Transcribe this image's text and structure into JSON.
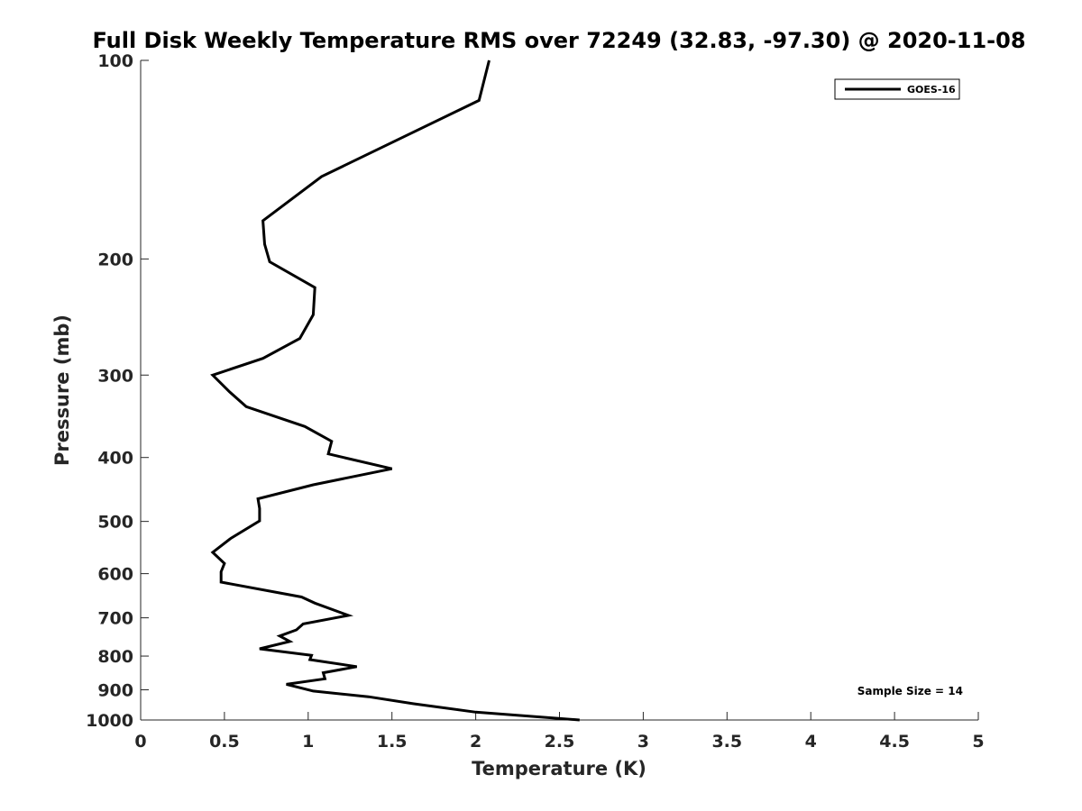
{
  "chart_data": {
    "type": "line",
    "title": "Full Disk Weekly Temperature RMS over 72249 (32.83, -97.30) @ 2020-11-08",
    "xlabel": "Temperature (K)",
    "ylabel": "Pressure (mb)",
    "xlim": [
      0,
      5
    ],
    "ylim": [
      100,
      1000
    ],
    "y_scale": "log",
    "y_reversed": true,
    "x_ticks": [
      0,
      0.5,
      1,
      1.5,
      2,
      2.5,
      3,
      3.5,
      4,
      4.5,
      5
    ],
    "x_tick_labels": [
      "0",
      "0.5",
      "1",
      "1.5",
      "2",
      "2.5",
      "3",
      "3.5",
      "4",
      "4.5",
      "5"
    ],
    "y_ticks": [
      100,
      200,
      300,
      400,
      500,
      600,
      700,
      800,
      900,
      1000
    ],
    "y_tick_labels": [
      "100",
      "200",
      "300",
      "400",
      "500",
      "600",
      "700",
      "800",
      "900",
      "1000"
    ],
    "grid": false,
    "legend_position": "top-right",
    "series": [
      {
        "name": "GOES-16",
        "color": "#000000",
        "x": [
          2.08,
          2.02,
          1.08,
          0.73,
          0.74,
          0.77,
          1.04,
          1.03,
          0.95,
          0.73,
          0.43,
          0.53,
          0.63,
          0.98,
          1.14,
          1.12,
          1.5,
          1.03,
          0.7,
          0.71,
          0.71,
          0.54,
          0.43,
          0.5,
          0.48,
          0.48,
          0.96,
          1.04,
          1.24,
          0.97,
          0.93,
          0.83,
          0.89,
          0.71,
          1.02,
          1.01,
          1.29,
          1.09,
          1.1,
          0.87,
          1.03,
          1.36,
          1.63,
          2.0,
          2.62
        ],
        "y": [
          100,
          115,
          150,
          175,
          190,
          202,
          221,
          243,
          264,
          283,
          300,
          318,
          335,
          359,
          378,
          395,
          416,
          440,
          462,
          478,
          499,
          530,
          557,
          579,
          596,
          618,
          651,
          665,
          694,
          715,
          730,
          746,
          760,
          780,
          798,
          810,
          830,
          848,
          866,
          883,
          904,
          922,
          945,
          973,
          1000
        ]
      }
    ],
    "annotations": [
      "Sample Size = 14"
    ]
  }
}
